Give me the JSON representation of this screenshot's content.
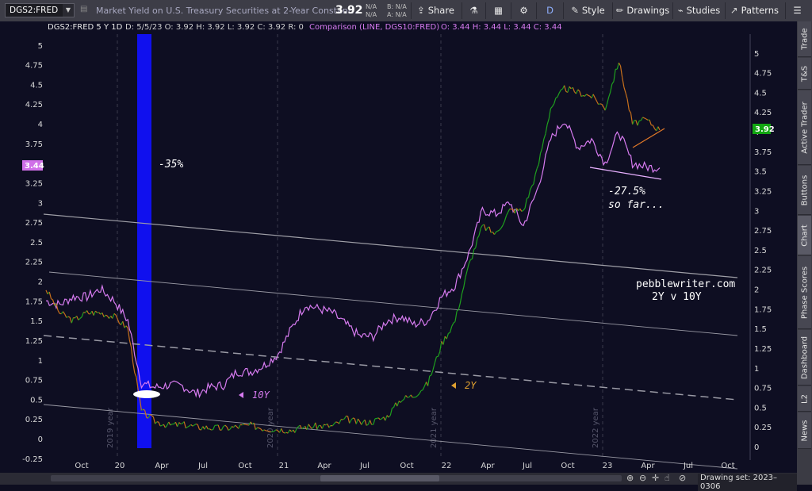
{
  "toolbar": {
    "symbol": "DGS2:FRED",
    "description": "Market Yield on U.S. Treasury Securities at 2-Year Constant…",
    "last": "3.92",
    "quote_a": "N/A",
    "quote_b": "N/A",
    "quote_bid": "B: N/A",
    "quote_ask": "A: N/A",
    "share": "Share",
    "aggregation": "D",
    "style": "Style",
    "drawings": "Drawings",
    "studies": "Studies",
    "patterns": "Patterns"
  },
  "sidebar": {
    "tabs": [
      "Trade",
      "T&S",
      "Active Trader",
      "Buttons",
      "Chart",
      "Phase Scores",
      "Dashboard",
      "L2",
      "News"
    ],
    "active": "Chart"
  },
  "header": {
    "primary": "DGS2:FRED 5 Y 1D",
    "ohlc": "D: 5/5/23  O: 3.92  H: 3.92  L: 3.92  C: 3.92  R: 0",
    "comparison": "Comparison (LINE, DGS10:FRED)",
    "comparison_ohlc": "O: 3.44  H: 3.44  L: 3.44  C: 3.44"
  },
  "annotations": {
    "drop": "-35%",
    "drop2_line1": "-27.5%",
    "drop2_line2": "so far...",
    "site_line1": "pebblewriter.com",
    "site_line2": "2Y v 10Y",
    "label_10y": "10Y",
    "label_2y": "2Y"
  },
  "price_badges": {
    "right": "3.92",
    "left": "3.44",
    "right_color": "#12a612",
    "left_color": "#d070e8"
  },
  "colors": {
    "y2_up": "#1fa01f",
    "y2_down": "#c8701c",
    "y10": "#d77bf0",
    "blue_bar": "#1010ee",
    "background": "#0e0e22"
  },
  "bottom": {
    "drawing_set": "Drawing set: 2023–0306"
  },
  "chart_data": {
    "type": "line",
    "title": "DGS2:FRED 5 Y 1D",
    "ylim": [
      -0.25,
      5.2
    ],
    "left_axis_ticks": [
      "5",
      "4.75",
      "4.5",
      "4.25",
      "4",
      "3.75",
      "3.5",
      "3.25",
      "3",
      "2.75",
      "2.5",
      "2.25",
      "2",
      "1.75",
      "1.5",
      "1.25",
      "1",
      "0.75",
      "0.5",
      "0.25",
      "0",
      "-0.25"
    ],
    "right_axis_ticks": [
      "5",
      "4.75",
      "4.5",
      "4.25",
      "4",
      "3.75",
      "3.5",
      "3.25",
      "3",
      "2.75",
      "2.5",
      "2.25",
      "2",
      "1.75",
      "1.5",
      "1.25",
      "1",
      "0.75",
      "0.5",
      "0.25",
      "0"
    ],
    "x_tick_labels": [
      "Oct",
      "20",
      "Apr",
      "Jul",
      "Oct",
      "21",
      "Apr",
      "Jul",
      "Oct",
      "22",
      "Apr",
      "Jul",
      "Oct",
      "23",
      "Apr",
      "Jul",
      "Oct"
    ],
    "year_markers": [
      "2019 year",
      "2020 year",
      "2021 year",
      "2022 year"
    ],
    "x": [
      "2019-08",
      "2019-09",
      "2019-10",
      "2019-11",
      "2019-12",
      "2020-01",
      "2020-02",
      "2020-03",
      "2020-04",
      "2020-05",
      "2020-06",
      "2020-07",
      "2020-08",
      "2020-09",
      "2020-10",
      "2020-11",
      "2020-12",
      "2021-01",
      "2021-02",
      "2021-03",
      "2021-04",
      "2021-05",
      "2021-06",
      "2021-07",
      "2021-08",
      "2021-09",
      "2021-10",
      "2021-11",
      "2021-12",
      "2022-01",
      "2022-02",
      "2022-03",
      "2022-04",
      "2022-05",
      "2022-06",
      "2022-07",
      "2022-08",
      "2022-09",
      "2022-10",
      "2022-11",
      "2022-12",
      "2023-01",
      "2023-02",
      "2023-03",
      "2023-04",
      "2023-05"
    ],
    "series": [
      {
        "name": "DGS2:FRED",
        "values": [
          1.9,
          1.6,
          1.5,
          1.6,
          1.6,
          1.55,
          1.4,
          0.35,
          0.22,
          0.17,
          0.18,
          0.15,
          0.14,
          0.13,
          0.15,
          0.17,
          0.13,
          0.12,
          0.11,
          0.15,
          0.16,
          0.16,
          0.25,
          0.2,
          0.22,
          0.28,
          0.5,
          0.55,
          0.7,
          1.2,
          1.5,
          2.2,
          2.7,
          2.6,
          2.9,
          2.9,
          3.4,
          4.2,
          4.45,
          4.4,
          4.35,
          4.2,
          4.8,
          4.0,
          4.05,
          3.92
        ]
      },
      {
        "name": "DGS10:FRED",
        "values": [
          1.75,
          1.7,
          1.8,
          1.8,
          1.9,
          1.75,
          1.5,
          0.7,
          0.65,
          0.68,
          0.67,
          0.57,
          0.65,
          0.68,
          0.85,
          0.85,
          0.93,
          1.07,
          1.4,
          1.7,
          1.65,
          1.6,
          1.45,
          1.3,
          1.3,
          1.5,
          1.55,
          1.45,
          1.5,
          1.8,
          1.95,
          2.35,
          2.9,
          2.85,
          3.0,
          2.7,
          3.15,
          3.8,
          4.05,
          3.7,
          3.8,
          3.5,
          3.9,
          3.5,
          3.45,
          3.44
        ]
      }
    ]
  }
}
